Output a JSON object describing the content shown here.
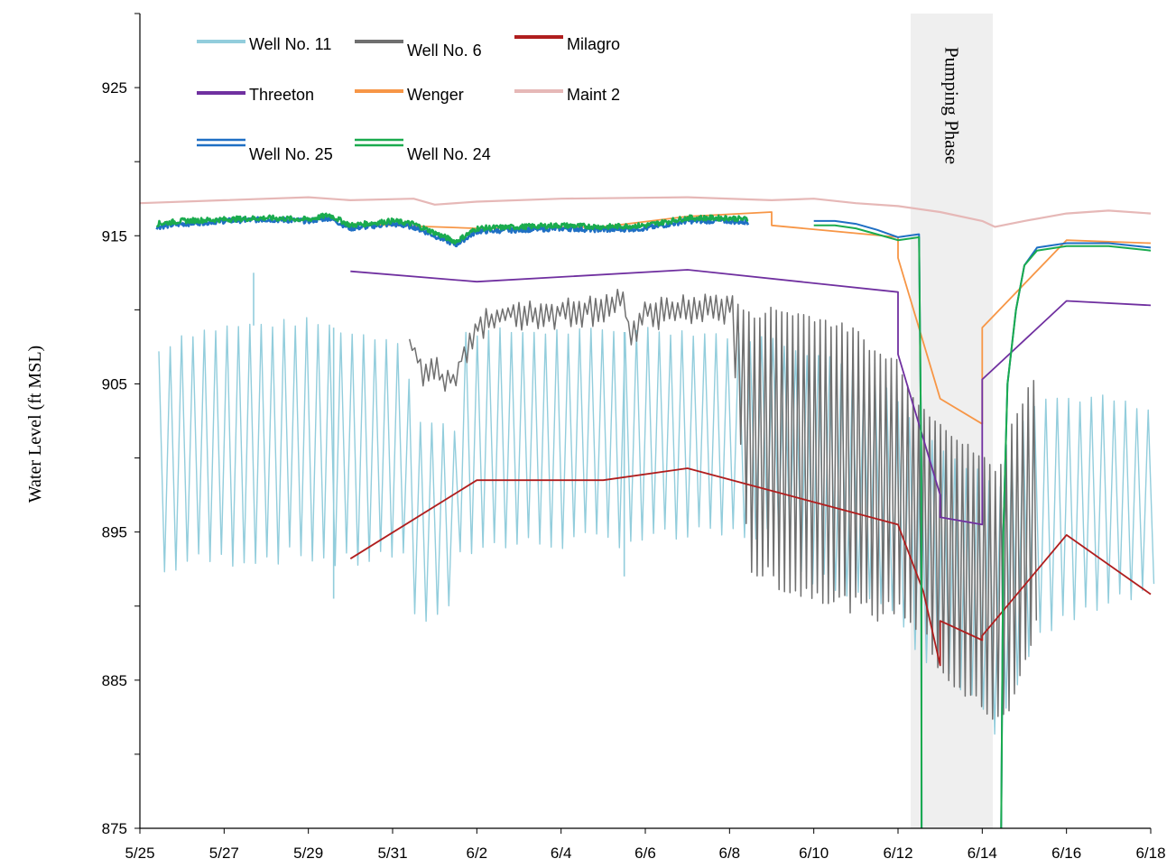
{
  "chart_data": {
    "type": "line",
    "title": "",
    "xlabel": "",
    "ylabel": "Water Level (ft MSL)",
    "x_tick_labels": [
      "5/25",
      "5/27",
      "5/29",
      "5/31",
      "6/2",
      "6/4",
      "6/6",
      "6/8",
      "6/10",
      "6/12",
      "6/14",
      "6/16",
      "6/18"
    ],
    "x_domain_days": [
      0,
      24
    ],
    "y_ticks": [
      875,
      885,
      895,
      905,
      915,
      925
    ],
    "ylim": [
      875,
      930
    ],
    "grid": false,
    "legend_position": "top-left",
    "band": {
      "label": "Pumping Phase",
      "start_day": 18.3,
      "end_day": 20.25,
      "color": "#efefef"
    },
    "series": [
      {
        "name": "Well No. 11",
        "color": "#92cddc",
        "style": "oscillating",
        "start_day": 0.45,
        "end_day": 24,
        "upper": [
          [
            0.45,
            907.2
          ],
          [
            1,
            908.3
          ],
          [
            2,
            908.8
          ],
          [
            4,
            909.2
          ],
          [
            4.6,
            908.8
          ],
          [
            5,
            908.4
          ],
          [
            6.3,
            907.9
          ],
          [
            6.5,
            902.5
          ],
          [
            7.5,
            902
          ],
          [
            7.6,
            908.5
          ],
          [
            11.5,
            908.5
          ],
          [
            11.6,
            908.8
          ],
          [
            13,
            908.5
          ],
          [
            15,
            908
          ],
          [
            16,
            907
          ],
          [
            17,
            906
          ],
          [
            18,
            904
          ],
          [
            18.5,
            901.5
          ],
          [
            19,
            901
          ],
          [
            19.5,
            899.5
          ],
          [
            20,
            899
          ],
          [
            20.4,
            898
          ],
          [
            20.8,
            902
          ],
          [
            21.3,
            904
          ],
          [
            22,
            904
          ],
          [
            23,
            904
          ],
          [
            24,
            903
          ]
        ],
        "lower": [
          [
            0.45,
            892
          ],
          [
            1,
            893
          ],
          [
            4,
            893.5
          ],
          [
            4.6,
            893
          ],
          [
            5,
            893
          ],
          [
            6,
            893.5
          ],
          [
            6.3,
            893
          ],
          [
            6.5,
            889
          ],
          [
            7.5,
            890
          ],
          [
            7.6,
            894
          ],
          [
            15,
            895
          ],
          [
            16,
            892
          ],
          [
            17,
            891
          ],
          [
            18,
            890
          ],
          [
            18.5,
            887
          ],
          [
            19,
            886
          ],
          [
            19.5,
            884
          ],
          [
            20,
            883
          ],
          [
            20.4,
            881
          ],
          [
            20.8,
            885
          ],
          [
            21.3,
            888
          ],
          [
            22,
            889
          ],
          [
            23,
            890
          ],
          [
            24,
            891
          ]
        ],
        "spikes": [
          [
            2.7,
            912.5
          ],
          [
            4.6,
            890.5
          ],
          [
            11.5,
            892
          ]
        ]
      },
      {
        "name": "Well No. 6",
        "color": "#6f6f6f",
        "style": "mixed",
        "start_day": 6.4,
        "end_day": 21.35,
        "upper": [
          [
            6.4,
            908
          ],
          [
            6.8,
            906
          ],
          [
            7,
            907
          ],
          [
            7.2,
            905.5
          ],
          [
            7.5,
            906
          ],
          [
            8,
            909.5
          ],
          [
            8.5,
            910.2
          ],
          [
            9,
            910.3
          ],
          [
            10,
            910.5
          ],
          [
            11,
            910.8
          ],
          [
            11.5,
            911.3
          ],
          [
            11.6,
            909
          ],
          [
            12,
            910.5
          ],
          [
            14,
            911
          ],
          [
            14.5,
            909.5
          ],
          [
            15,
            910
          ],
          [
            16,
            909.5
          ],
          [
            16.5,
            909
          ],
          [
            17,
            908.5
          ],
          [
            17.5,
            907
          ],
          [
            18,
            906.5
          ],
          [
            18.5,
            903.5
          ],
          [
            19,
            902.5
          ],
          [
            19.5,
            901
          ],
          [
            20,
            900
          ],
          [
            20.35,
            899
          ],
          [
            20.8,
            903
          ],
          [
            21.35,
            906
          ]
        ],
        "lower": [
          [
            6.4,
            907
          ],
          [
            6.8,
            905
          ],
          [
            7,
            905.5
          ],
          [
            7.2,
            904.5
          ],
          [
            7.5,
            905
          ],
          [
            8,
            908.5
          ],
          [
            8.5,
            909
          ],
          [
            9,
            909
          ],
          [
            10,
            909.3
          ],
          [
            11,
            909.5
          ],
          [
            11.5,
            909.8
          ],
          [
            11.6,
            907.5
          ],
          [
            12,
            909
          ],
          [
            14,
            909.5
          ],
          [
            14.5,
            892.5
          ],
          [
            15,
            892
          ],
          [
            15.5,
            891
          ],
          [
            16,
            891
          ],
          [
            16.5,
            890.5
          ],
          [
            17,
            890
          ],
          [
            17.5,
            889.5
          ],
          [
            18,
            890
          ],
          [
            18.5,
            888.5
          ],
          [
            19,
            886
          ],
          [
            19.5,
            884
          ],
          [
            20,
            883.5
          ],
          [
            20.35,
            882
          ],
          [
            20.8,
            884
          ],
          [
            21.35,
            890
          ]
        ]
      },
      {
        "name": "Milagro",
        "color": "#b01e1e",
        "style": "line",
        "points": [
          [
            5,
            893.2
          ],
          [
            8,
            898.5
          ],
          [
            11,
            898.5
          ],
          [
            13,
            899.3
          ],
          [
            18,
            895.5
          ],
          [
            18.6,
            891
          ],
          [
            19,
            886
          ],
          [
            19,
            889
          ],
          [
            20,
            887.7
          ],
          [
            20,
            888
          ],
          [
            22,
            894.8
          ],
          [
            24,
            890.8
          ]
        ]
      },
      {
        "name": "Threeton",
        "color": "#7030a0",
        "style": "line",
        "points": [
          [
            5,
            912.6
          ],
          [
            8,
            911.9
          ],
          [
            13,
            912.7
          ],
          [
            18,
            911.2
          ],
          [
            18,
            907
          ],
          [
            19,
            897.5
          ],
          [
            19,
            896
          ],
          [
            20,
            895.5
          ],
          [
            20,
            905.3
          ],
          [
            22,
            910.6
          ],
          [
            24,
            910.3
          ]
        ]
      },
      {
        "name": "Wenger",
        "color": "#f79646",
        "style": "line",
        "points": [
          [
            5,
            915.8
          ],
          [
            8,
            915.5
          ],
          [
            11,
            915.6
          ],
          [
            13,
            916.3
          ],
          [
            15,
            916.6
          ],
          [
            15,
            915.7
          ],
          [
            18,
            914.9
          ],
          [
            18,
            913.5
          ],
          [
            19,
            904
          ],
          [
            20,
            902.3
          ],
          [
            20,
            908.8
          ],
          [
            22,
            914.7
          ],
          [
            24,
            914.5
          ]
        ]
      },
      {
        "name": "Maint 2",
        "color": "#e6b8b7",
        "style": "line",
        "points": [
          [
            0,
            917.2
          ],
          [
            2,
            917.4
          ],
          [
            4,
            917.6
          ],
          [
            5,
            917.4
          ],
          [
            6.5,
            917.5
          ],
          [
            7,
            917.1
          ],
          [
            8,
            917.3
          ],
          [
            10,
            917.5
          ],
          [
            13,
            917.6
          ],
          [
            15,
            917.4
          ],
          [
            16,
            917.5
          ],
          [
            17,
            917.2
          ],
          [
            18,
            917.0
          ],
          [
            19,
            916.6
          ],
          [
            20,
            916.0
          ],
          [
            20.3,
            915.6
          ],
          [
            21,
            916.0
          ],
          [
            22,
            916.5
          ],
          [
            23,
            916.7
          ],
          [
            24,
            916.5
          ]
        ]
      },
      {
        "name": "Well No. 25",
        "color": "#1f6fc4",
        "style": "noisy",
        "segments": [
          [
            [
              0.4,
              915.6
            ],
            [
              1,
              915.8
            ],
            [
              2,
              916.0
            ],
            [
              3,
              916.1
            ],
            [
              4,
              916.0
            ],
            [
              4.5,
              916.2
            ],
            [
              5,
              915.5
            ],
            [
              6,
              915.8
            ],
            [
              6.5,
              915.6
            ],
            [
              7,
              915
            ],
            [
              7.5,
              914.4
            ],
            [
              8,
              915.3
            ],
            [
              9,
              915.4
            ],
            [
              10,
              915.5
            ],
            [
              11,
              915.4
            ],
            [
              12,
              915.5
            ],
            [
              13,
              916.0
            ],
            [
              14,
              916.0
            ],
            [
              14.45,
              915.9
            ]
          ],
          [
            [
              16,
              916
            ],
            [
              16.5,
              916
            ],
            [
              17,
              915.8
            ],
            [
              17.5,
              915.4
            ],
            [
              18,
              914.9
            ],
            [
              18.5,
              915.1
            ],
            [
              18.55,
              900
            ],
            [
              18.56,
              875
            ]
          ],
          [
            [
              20.45,
              875
            ],
            [
              20.5,
              895
            ],
            [
              20.6,
              905
            ],
            [
              20.8,
              910
            ],
            [
              21,
              913
            ],
            [
              21.3,
              914.2
            ],
            [
              22,
              914.5
            ],
            [
              23,
              914.5
            ],
            [
              24,
              914.2
            ]
          ]
        ]
      },
      {
        "name": "Well No. 24",
        "color": "#1aab4e",
        "style": "noisy",
        "segments": [
          [
            [
              0.4,
              915.8
            ],
            [
              1,
              916.0
            ],
            [
              2,
              916.1
            ],
            [
              3,
              916.2
            ],
            [
              4,
              916.1
            ],
            [
              4.5,
              916.4
            ],
            [
              5,
              915.7
            ],
            [
              6,
              916.0
            ],
            [
              6.5,
              915.8
            ],
            [
              7,
              915.2
            ],
            [
              7.5,
              914.6
            ],
            [
              8,
              915.5
            ],
            [
              9,
              915.6
            ],
            [
              10,
              915.7
            ],
            [
              11,
              915.6
            ],
            [
              12,
              915.7
            ],
            [
              13,
              916.2
            ],
            [
              14,
              916.2
            ],
            [
              14.45,
              916.1
            ]
          ],
          [
            [
              16,
              915.7
            ],
            [
              16.5,
              915.7
            ],
            [
              17,
              915.5
            ],
            [
              17.5,
              915.1
            ],
            [
              18,
              914.7
            ],
            [
              18.5,
              914.9
            ],
            [
              18.55,
              900
            ],
            [
              18.56,
              875
            ]
          ],
          [
            [
              20.45,
              875
            ],
            [
              20.5,
              895
            ],
            [
              20.6,
              905
            ],
            [
              20.8,
              910
            ],
            [
              21,
              913
            ],
            [
              21.3,
              914.0
            ],
            [
              22,
              914.3
            ],
            [
              23,
              914.3
            ],
            [
              24,
              914.0
            ]
          ]
        ]
      }
    ]
  }
}
